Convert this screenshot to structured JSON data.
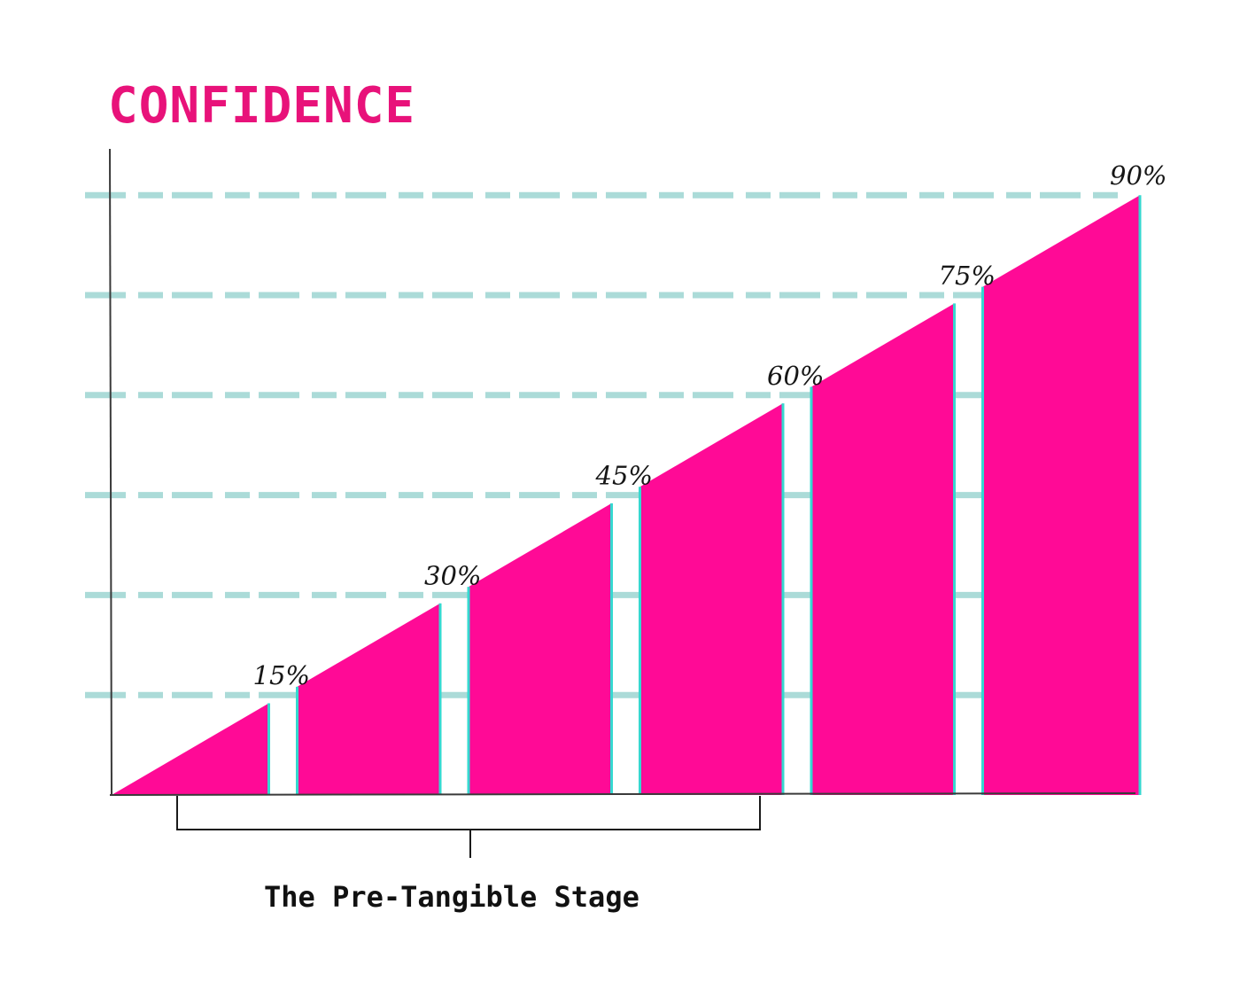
{
  "colors": {
    "fill": "#ff0a96",
    "title": "#e8127a",
    "gridline": "#8fcfcb",
    "edge": "#35d8d0",
    "axis": "#3a3a3a",
    "bracket": "#1a1a1a"
  },
  "chart_data": {
    "type": "area",
    "title": "CONFIDENCE",
    "xlabel": "",
    "ylabel": "",
    "ylim": [
      0,
      100
    ],
    "grid": true,
    "gridlines": [
      15,
      30,
      45,
      60,
      75,
      90
    ],
    "series": [
      {
        "values": [
          15,
          30,
          45,
          60,
          75,
          90
        ],
        "labels": [
          "15%",
          "30%",
          "45%",
          "60%",
          "75%",
          "90%"
        ]
      }
    ],
    "annotations": [
      {
        "text": "The Pre-Tangible Stage",
        "span": [
          1,
          4
        ]
      }
    ]
  }
}
